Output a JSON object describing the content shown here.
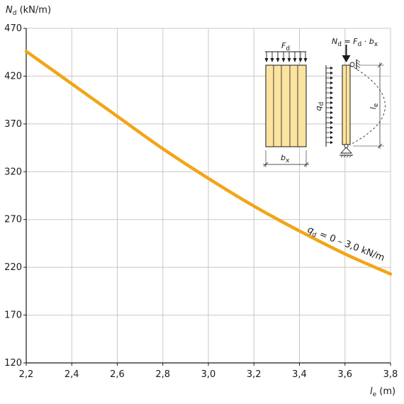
{
  "chart_data": {
    "type": "line",
    "ylabel": {
      "symbol": "N",
      "sub": "d",
      "unit": " (kN/m)"
    },
    "xlabel": {
      "symbol": "l",
      "sub": "e",
      "unit": " (m)"
    },
    "xlim": [
      2.2,
      3.8
    ],
    "ylim": [
      120,
      470
    ],
    "x_ticks": [
      "2,2",
      "2,4",
      "2,6",
      "2,8",
      "3,0",
      "3,2",
      "3,4",
      "3,6",
      "3,8"
    ],
    "y_ticks": [
      "120",
      "170",
      "220",
      "270",
      "320",
      "370",
      "420",
      "470"
    ],
    "grid": true,
    "series": [
      {
        "label": {
          "symbol": "q",
          "sub": "d",
          "rest": " = 0 – 3,0 kN/m"
        },
        "color": "#f2a516",
        "x": [
          2.2,
          2.4,
          2.6,
          2.8,
          3.0,
          3.2,
          3.4,
          3.6,
          3.8
        ],
        "y": [
          446,
          412,
          378,
          344,
          313,
          284,
          258,
          234,
          213
        ]
      }
    ],
    "inset": {
      "force_label": {
        "symbol": "F",
        "sub": "d"
      },
      "width_label": {
        "symbol": "b",
        "sub": "x"
      },
      "q_label": {
        "symbol": "q",
        "sub": "d"
      },
      "length_label": {
        "symbol": "l",
        "sub": "e"
      },
      "formula": {
        "lhs": "N",
        "lhs_sub": "d",
        "eq": " = ",
        "f": "F",
        "f_sub": "d",
        "dot": " · ",
        "b": "b",
        "b_sub": "x"
      }
    }
  }
}
